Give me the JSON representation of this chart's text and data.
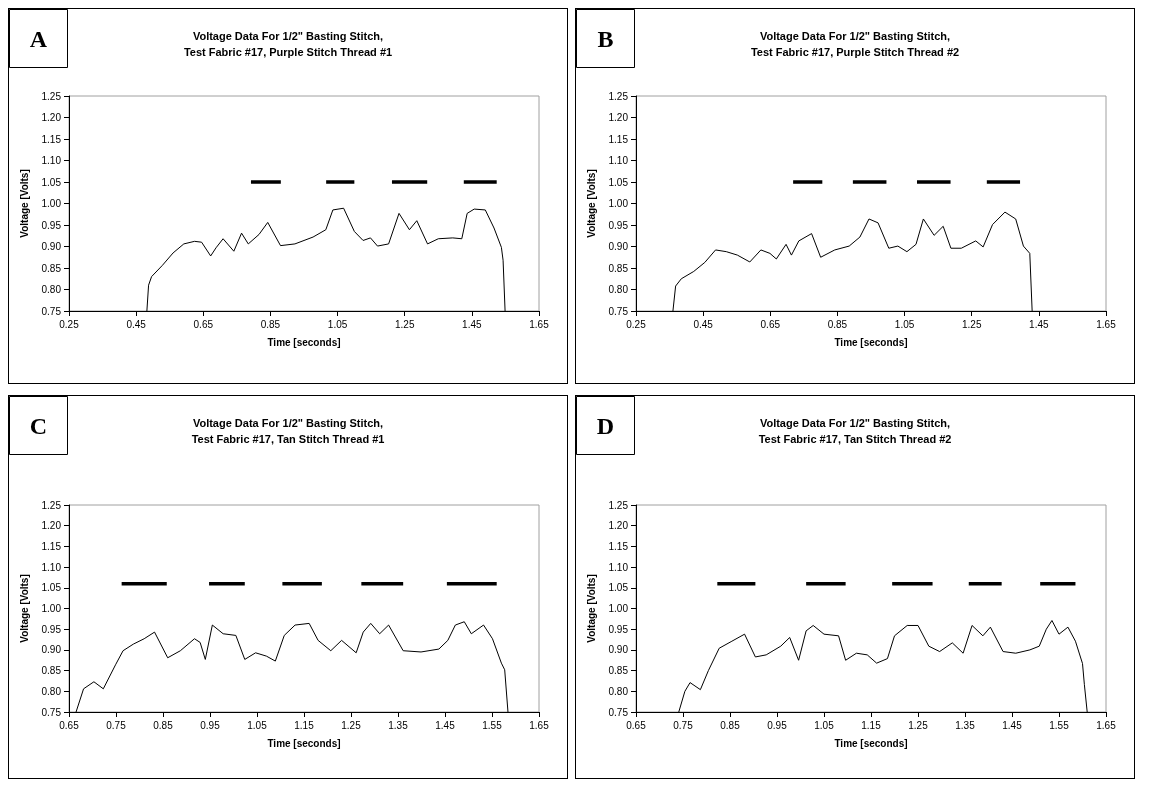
{
  "chart_data": [
    {
      "type": "line",
      "title": "Voltage Data For 1/2\" Basting Stitch,\nTest Fabric #17, Purple Stitch Thread #1",
      "xlabel": "Time [seconds]",
      "ylabel": "Voltage [Volts]",
      "annotations": [
        "A"
      ],
      "xlim": [
        0.25,
        1.65
      ],
      "xticks": [
        0.25,
        0.45,
        0.65,
        0.85,
        1.05,
        1.25,
        1.45,
        1.65
      ],
      "ylim": [
        0.75,
        1.25
      ],
      "yticks": [
        {
          "value": 0.75,
          "label": "0.75"
        },
        {
          "value": 0.8,
          "label": "0.80"
        },
        {
          "value": 0.85,
          "label": "0.85"
        },
        {
          "value": 0.9,
          "label": "0.90"
        },
        {
          "value": 0.95,
          "label": "0.95"
        },
        {
          "value": 1.0,
          "label": "1.00"
        },
        {
          "value": 1.05,
          "label": "1.05"
        },
        {
          "value": 1.1,
          "label": "1.10"
        },
        {
          "value": 1.15,
          "label": "1.15"
        },
        {
          "value": 1.2,
          "label": "1.20"
        },
        {
          "value": 1.25,
          "label": "1.25"
        }
      ],
      "series": [
        {
          "color": "#000000",
          "x": [
            0.482,
            0.487,
            0.496,
            0.528,
            0.56,
            0.592,
            0.624,
            0.645,
            0.672,
            0.688,
            0.709,
            0.741,
            0.764,
            0.784,
            0.816,
            0.842,
            0.88,
            0.923,
            0.977,
            1.015,
            1.036,
            1.068,
            1.1,
            1.126,
            1.148,
            1.169,
            1.202,
            1.233,
            1.264,
            1.286,
            1.318,
            1.35,
            1.393,
            1.42,
            1.436,
            1.457,
            1.49,
            1.516,
            1.538,
            1.543,
            1.549
          ],
          "values": [
            0.75,
            0.81,
            0.83,
            0.856,
            0.885,
            0.906,
            0.912,
            0.91,
            0.878,
            0.897,
            0.918,
            0.889,
            0.931,
            0.906,
            0.928,
            0.956,
            0.902,
            0.906,
            0.922,
            0.939,
            0.985,
            0.989,
            0.935,
            0.914,
            0.92,
            0.901,
            0.906,
            0.977,
            0.939,
            0.96,
            0.906,
            0.918,
            0.92,
            0.918,
            0.977,
            0.987,
            0.985,
            0.943,
            0.898,
            0.868,
            0.75
          ]
        },
        {
          "color": "#000000",
          "x": [
            0.792,
            0.881,
            0.95,
            1.016,
            1.1,
            1.15,
            1.212,
            1.317,
            1.37,
            1.426,
            1.524
          ],
          "values": [
            1.05,
            1.05,
            null,
            1.05,
            1.05,
            null,
            1.05,
            1.05,
            null,
            1.05,
            1.05
          ]
        }
      ]
    },
    {
      "type": "line",
      "title": "Voltage Data For 1/2\" Basting Stitch,\nTest Fabric #17, Purple Stitch Thread #2",
      "xlabel": "Time [seconds]",
      "ylabel": "Voltage [Volts]",
      "annotations": [
        "B"
      ],
      "xlim": [
        0.25,
        1.65
      ],
      "xticks": [
        0.25,
        0.45,
        0.65,
        0.85,
        1.05,
        1.25,
        1.45,
        1.65
      ],
      "ylim": [
        0.75,
        1.25
      ],
      "yticks": [
        {
          "value": 0.75,
          "label": "0.75"
        },
        {
          "value": 0.8,
          "label": "0.80"
        },
        {
          "value": 0.85,
          "label": "0.85"
        },
        {
          "value": 0.9,
          "label": "0.90"
        },
        {
          "value": 0.95,
          "label": "0.95"
        },
        {
          "value": 1.0,
          "label": "1.00"
        },
        {
          "value": 1.05,
          "label": "1.05"
        },
        {
          "value": 1.1,
          "label": "1.10"
        },
        {
          "value": 1.15,
          "label": "1.15"
        },
        {
          "value": 1.2,
          "label": "1.20"
        },
        {
          "value": 1.25,
          "label": "1.25"
        }
      ],
      "series": [
        {
          "color": "#000000",
          "x": [
            0.36,
            0.368,
            0.385,
            0.422,
            0.455,
            0.487,
            0.519,
            0.552,
            0.589,
            0.622,
            0.649,
            0.668,
            0.697,
            0.713,
            0.735,
            0.773,
            0.8,
            0.842,
            0.885,
            0.917,
            0.944,
            0.971,
            1.003,
            1.03,
            1.057,
            1.084,
            1.106,
            1.138,
            1.165,
            1.188,
            1.219,
            1.262,
            1.284,
            1.312,
            1.349,
            1.381,
            1.404,
            1.423,
            1.43
          ],
          "values": [
            0.75,
            0.808,
            0.825,
            0.842,
            0.863,
            0.892,
            0.888,
            0.88,
            0.864,
            0.892,
            0.884,
            0.871,
            0.905,
            0.88,
            0.913,
            0.93,
            0.875,
            0.892,
            0.901,
            0.922,
            0.964,
            0.955,
            0.896,
            0.901,
            0.888,
            0.905,
            0.964,
            0.926,
            0.947,
            0.896,
            0.896,
            0.913,
            0.899,
            0.951,
            0.98,
            0.964,
            0.901,
            0.884,
            0.75
          ]
        },
        {
          "color": "#000000",
          "x": [
            0.718,
            0.805,
            0.85,
            0.896,
            0.996,
            1.04,
            1.087,
            1.187,
            1.24,
            1.295,
            1.394
          ],
          "values": [
            1.05,
            1.05,
            null,
            1.05,
            1.05,
            null,
            1.05,
            1.05,
            null,
            1.05,
            1.05
          ]
        }
      ]
    },
    {
      "type": "line",
      "title": "Voltage Data For 1/2\" Basting Stitch,\nTest Fabric #17, Tan Stitch Thread #1",
      "xlabel": "Time [seconds]",
      "ylabel": "Voltage [Volts]",
      "annotations": [
        "C"
      ],
      "xlim": [
        0.65,
        1.65
      ],
      "xticks": [
        0.65,
        0.75,
        0.85,
        0.95,
        1.05,
        1.15,
        1.25,
        1.35,
        1.45,
        1.55,
        1.65
      ],
      "ylim": [
        0.75,
        1.25
      ],
      "yticks": [
        {
          "value": 0.75,
          "label": "0.75"
        },
        {
          "value": 0.8,
          "label": "0.80"
        },
        {
          "value": 0.85,
          "label": "0.85"
        },
        {
          "value": 0.9,
          "label": "0.90"
        },
        {
          "value": 0.95,
          "label": "0.95"
        },
        {
          "value": 1.0,
          "label": "1.00"
        },
        {
          "value": 1.05,
          "label": "1.05"
        },
        {
          "value": 1.1,
          "label": "1.10"
        },
        {
          "value": 1.15,
          "label": "1.15"
        },
        {
          "value": 1.2,
          "label": "1.20"
        },
        {
          "value": 1.25,
          "label": "1.25"
        }
      ],
      "series": [
        {
          "color": "#000000",
          "x": [
            0.665,
            0.681,
            0.703,
            0.723,
            0.749,
            0.765,
            0.787,
            0.81,
            0.832,
            0.86,
            0.887,
            0.917,
            0.929,
            0.94,
            0.955,
            0.978,
            1.005,
            1.024,
            1.047,
            1.07,
            1.089,
            1.108,
            1.131,
            1.161,
            1.18,
            1.207,
            1.23,
            1.261,
            1.276,
            1.292,
            1.311,
            1.33,
            1.361,
            1.399,
            1.437,
            1.456,
            1.472,
            1.491,
            1.506,
            1.532,
            1.551,
            1.57,
            1.577,
            1.584
          ],
          "values": [
            0.75,
            0.806,
            0.823,
            0.806,
            0.864,
            0.898,
            0.914,
            0.927,
            0.943,
            0.881,
            0.898,
            0.927,
            0.918,
            0.877,
            0.96,
            0.939,
            0.935,
            0.877,
            0.893,
            0.885,
            0.873,
            0.935,
            0.96,
            0.964,
            0.923,
            0.898,
            0.923,
            0.893,
            0.943,
            0.964,
            0.939,
            0.96,
            0.898,
            0.895,
            0.902,
            0.923,
            0.96,
            0.968,
            0.939,
            0.96,
            0.927,
            0.868,
            0.852,
            0.75
          ]
        },
        {
          "color": "#000000",
          "x": [
            0.762,
            0.858,
            0.9,
            0.948,
            1.024,
            1.06,
            1.104,
            1.188,
            1.23,
            1.272,
            1.361,
            1.41,
            1.454,
            1.56
          ],
          "values": [
            1.06,
            1.06,
            null,
            1.06,
            1.06,
            null,
            1.06,
            1.06,
            null,
            1.06,
            1.06,
            null,
            1.06,
            1.06
          ]
        }
      ]
    },
    {
      "type": "line",
      "title": "Voltage Data For 1/2\" Basting Stitch,\nTest Fabric #17, Tan Stitch Thread #2",
      "xlabel": "Time [seconds]",
      "ylabel": "Voltage [Volts]",
      "annotations": [
        "D"
      ],
      "xlim": [
        0.65,
        1.65
      ],
      "xticks": [
        0.65,
        0.75,
        0.85,
        0.95,
        1.05,
        1.15,
        1.25,
        1.35,
        1.45,
        1.55,
        1.65
      ],
      "ylim": [
        0.75,
        1.25
      ],
      "yticks": [
        {
          "value": 0.75,
          "label": "0.75"
        },
        {
          "value": 0.8,
          "label": "0.80"
        },
        {
          "value": 0.85,
          "label": "0.85"
        },
        {
          "value": 0.9,
          "label": "0.90"
        },
        {
          "value": 0.95,
          "label": "0.95"
        },
        {
          "value": 1.0,
          "label": "1.00"
        },
        {
          "value": 1.05,
          "label": "1.05"
        },
        {
          "value": 1.1,
          "label": "1.10"
        },
        {
          "value": 1.15,
          "label": "1.15"
        },
        {
          "value": 1.2,
          "label": "1.20"
        },
        {
          "value": 1.25,
          "label": "1.25"
        }
      ],
      "series": [
        {
          "color": "#000000",
          "x": [
            0.741,
            0.754,
            0.765,
            0.787,
            0.804,
            0.827,
            0.854,
            0.881,
            0.904,
            0.927,
            0.958,
            0.977,
            0.996,
            1.012,
            1.027,
            1.05,
            1.081,
            1.096,
            1.119,
            1.142,
            1.162,
            1.185,
            1.2,
            1.227,
            1.25,
            1.273,
            1.296,
            1.323,
            1.346,
            1.365,
            1.388,
            1.404,
            1.431,
            1.458,
            1.488,
            1.508,
            1.523,
            1.535,
            1.55,
            1.569,
            1.585,
            1.6,
            1.604,
            1.61
          ],
          "values": [
            0.75,
            0.8,
            0.821,
            0.804,
            0.85,
            0.904,
            0.921,
            0.938,
            0.883,
            0.888,
            0.909,
            0.93,
            0.875,
            0.946,
            0.959,
            0.938,
            0.934,
            0.875,
            0.892,
            0.888,
            0.868,
            0.879,
            0.934,
            0.959,
            0.959,
            0.909,
            0.896,
            0.917,
            0.892,
            0.959,
            0.934,
            0.955,
            0.896,
            0.892,
            0.9,
            0.909,
            0.95,
            0.971,
            0.938,
            0.955,
            0.921,
            0.867,
            0.816,
            0.75
          ]
        },
        {
          "color": "#000000",
          "x": [
            0.823,
            0.904,
            0.95,
            1.012,
            1.096,
            1.15,
            1.195,
            1.281,
            1.32,
            1.358,
            1.428,
            1.47,
            1.51,
            1.585
          ],
          "values": [
            1.06,
            1.06,
            null,
            1.06,
            1.06,
            null,
            1.06,
            1.06,
            null,
            1.06,
            1.06,
            null,
            1.06,
            1.06
          ]
        }
      ]
    }
  ]
}
